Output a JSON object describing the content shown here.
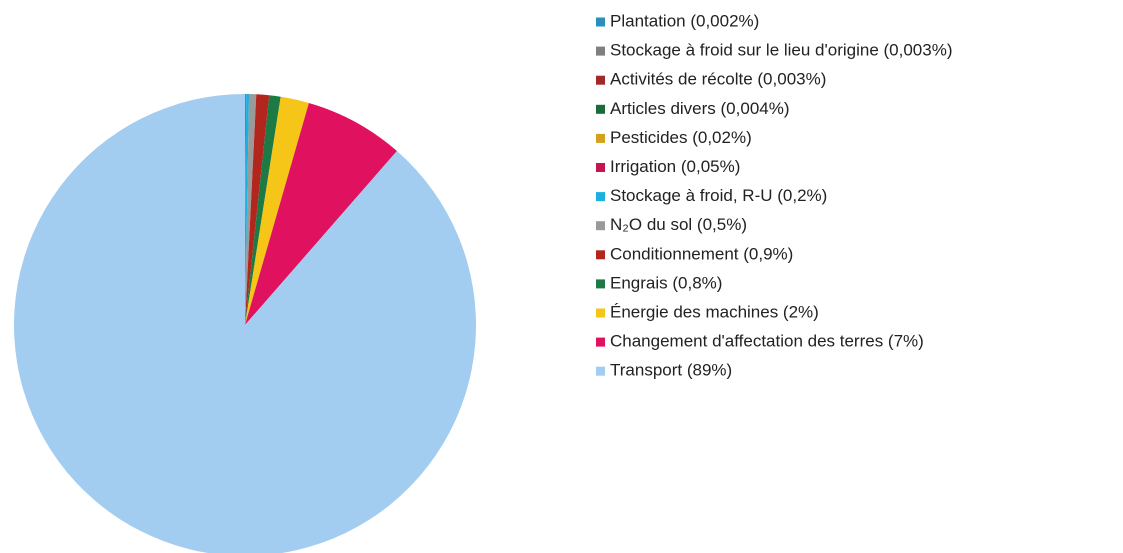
{
  "chart_data": {
    "type": "pie",
    "categories": [
      "Plantation (0,002%)",
      "Stockage à froid sur le lieu d'origine (0,003%)",
      "Activités de récolte (0,003%)",
      "Articles divers (0,004%)",
      "Pesticides (0,02%)",
      "Irrigation (0,05%)",
      "Stockage à froid, R-U (0,2%)",
      "N₂O du sol (0,5%)",
      "Conditionnement (0,9%)",
      "Engrais (0,8%)",
      "Énergie des machines (2%)",
      "Changement d'affectation des terres (7%)",
      "Transport (89%)"
    ],
    "values": [
      0.002,
      0.003,
      0.003,
      0.004,
      0.02,
      0.05,
      0.2,
      0.5,
      0.9,
      0.8,
      2,
      7,
      89
    ],
    "colors": [
      "#2a8fbd",
      "#7f7f7f",
      "#a3282a",
      "#1a6b3c",
      "#d4a21a",
      "#c4174f",
      "#1ab0e0",
      "#9a9a9a",
      "#b3261e",
      "#1d7a45",
      "#f5c518",
      "#e0115f",
      "#a3cdf0"
    ]
  }
}
